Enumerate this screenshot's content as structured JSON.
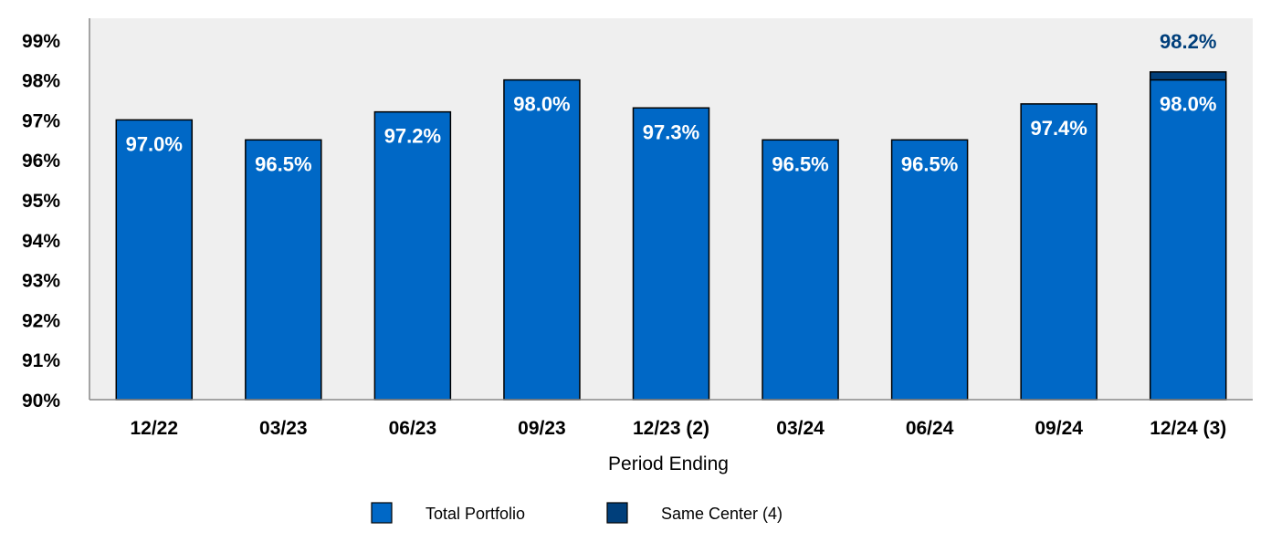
{
  "chart_data": {
    "type": "bar",
    "title": "",
    "xlabel": "Period Ending",
    "ylabel": "",
    "ylim": [
      90,
      99.5
    ],
    "yticks": [
      "90%",
      "91%",
      "92%",
      "93%",
      "94%",
      "95%",
      "96%",
      "97%",
      "98%",
      "99%"
    ],
    "grid": false,
    "legend_placement": "bottom",
    "categories": [
      "12/22",
      "03/23",
      "06/23",
      "09/23",
      "12/23 (2)",
      "03/24",
      "06/24",
      "09/24",
      "12/24 (3)"
    ],
    "series": [
      {
        "name": "Total Portfolio",
        "color": "#0068C6",
        "values": [
          97.0,
          96.5,
          97.2,
          98.0,
          97.3,
          96.5,
          96.5,
          97.4,
          98.0
        ],
        "labels": [
          "97.0%",
          "96.5%",
          "97.2%",
          "98.0%",
          "97.3%",
          "96.5%",
          "96.5%",
          "97.4%",
          "98.0%"
        ]
      },
      {
        "name": "Same Center (4)",
        "color": "#003F7B",
        "values": [
          null,
          null,
          null,
          null,
          null,
          null,
          null,
          null,
          98.2
        ],
        "labels": [
          null,
          null,
          null,
          null,
          null,
          null,
          null,
          null,
          "98.2%"
        ]
      }
    ],
    "plot_background": "#EFEFEF"
  }
}
